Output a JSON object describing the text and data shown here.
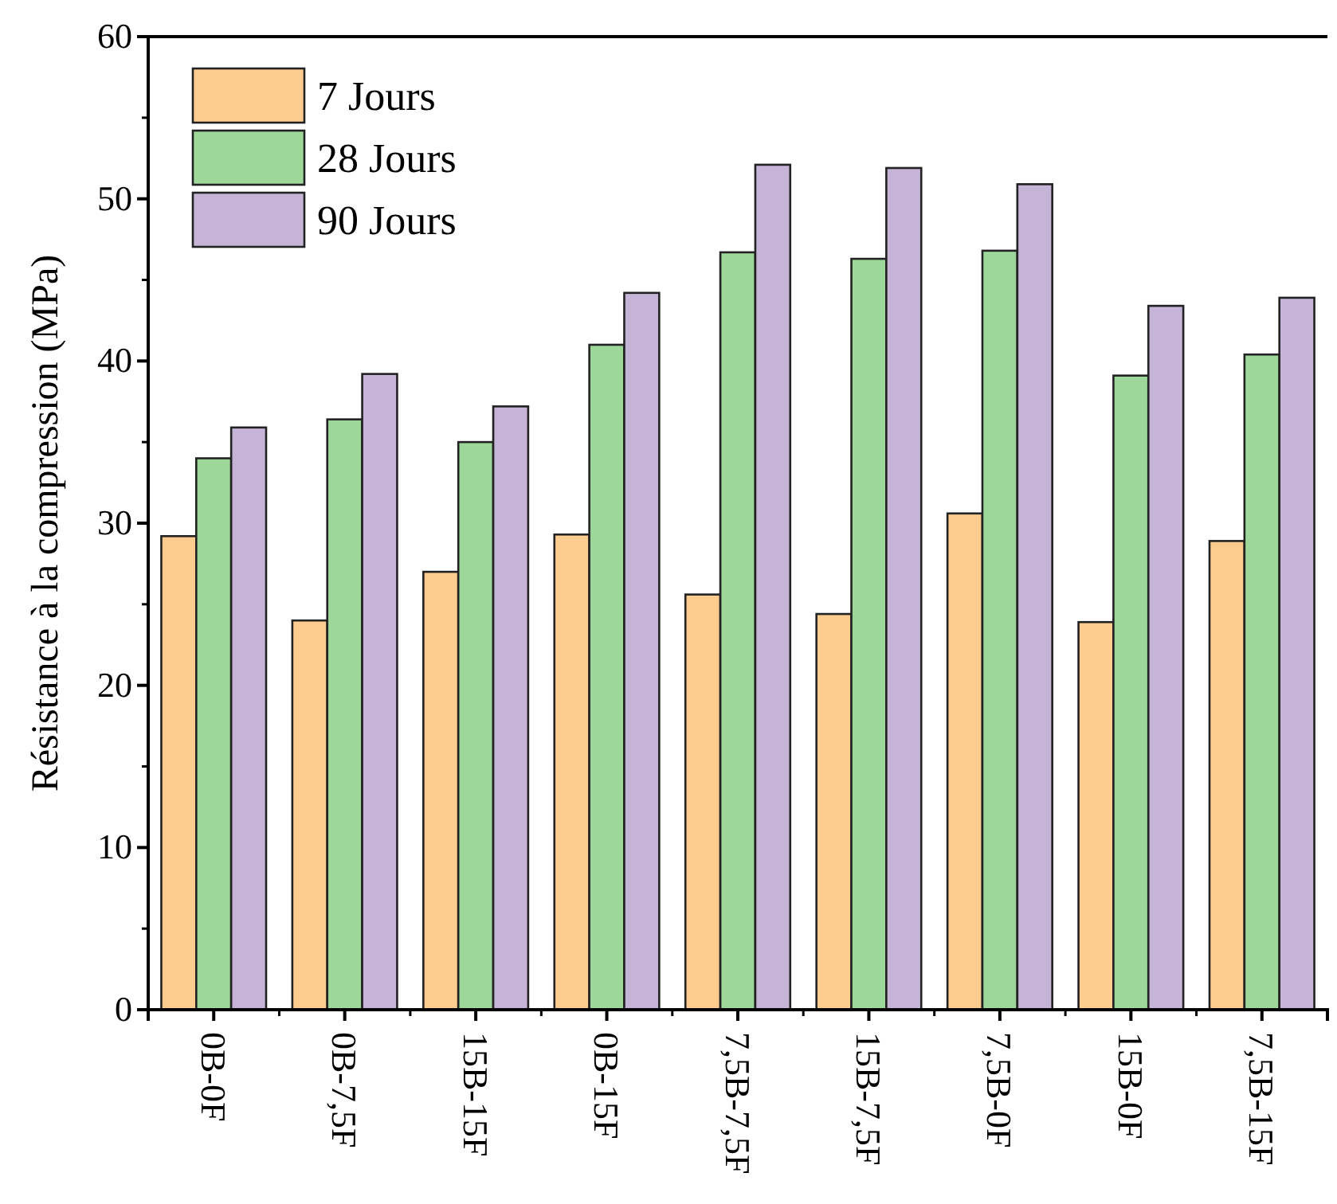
{
  "chart_data": {
    "type": "bar",
    "ylabel": "Résistance à la compression (MPa)",
    "categories": [
      "0B-0F",
      "0B-7,5F",
      "15B-15F",
      "0B-15F",
      "7,5B-7,5F",
      "15B-7,5F",
      "7,5B-0F",
      "15B-0F",
      "7,5B-15F"
    ],
    "series": [
      {
        "name": "7 Jours",
        "color": "#fecc8f",
        "values": [
          29.2,
          24.0,
          27.0,
          29.3,
          25.6,
          24.4,
          30.6,
          23.9,
          28.9
        ]
      },
      {
        "name": "28 Jours",
        "color": "#9dd79a",
        "values": [
          34.0,
          36.4,
          35.0,
          41.0,
          46.7,
          46.3,
          46.8,
          39.1,
          40.4
        ]
      },
      {
        "name": "90 Jours",
        "color": "#c5b4d8",
        "values": [
          35.9,
          39.2,
          37.2,
          44.2,
          52.1,
          51.9,
          50.9,
          43.4,
          43.9
        ]
      }
    ],
    "ylim": [
      0,
      60
    ],
    "yticks": [
      0,
      10,
      20,
      30,
      40,
      50,
      60
    ],
    "grid": false,
    "legend": "top left"
  }
}
